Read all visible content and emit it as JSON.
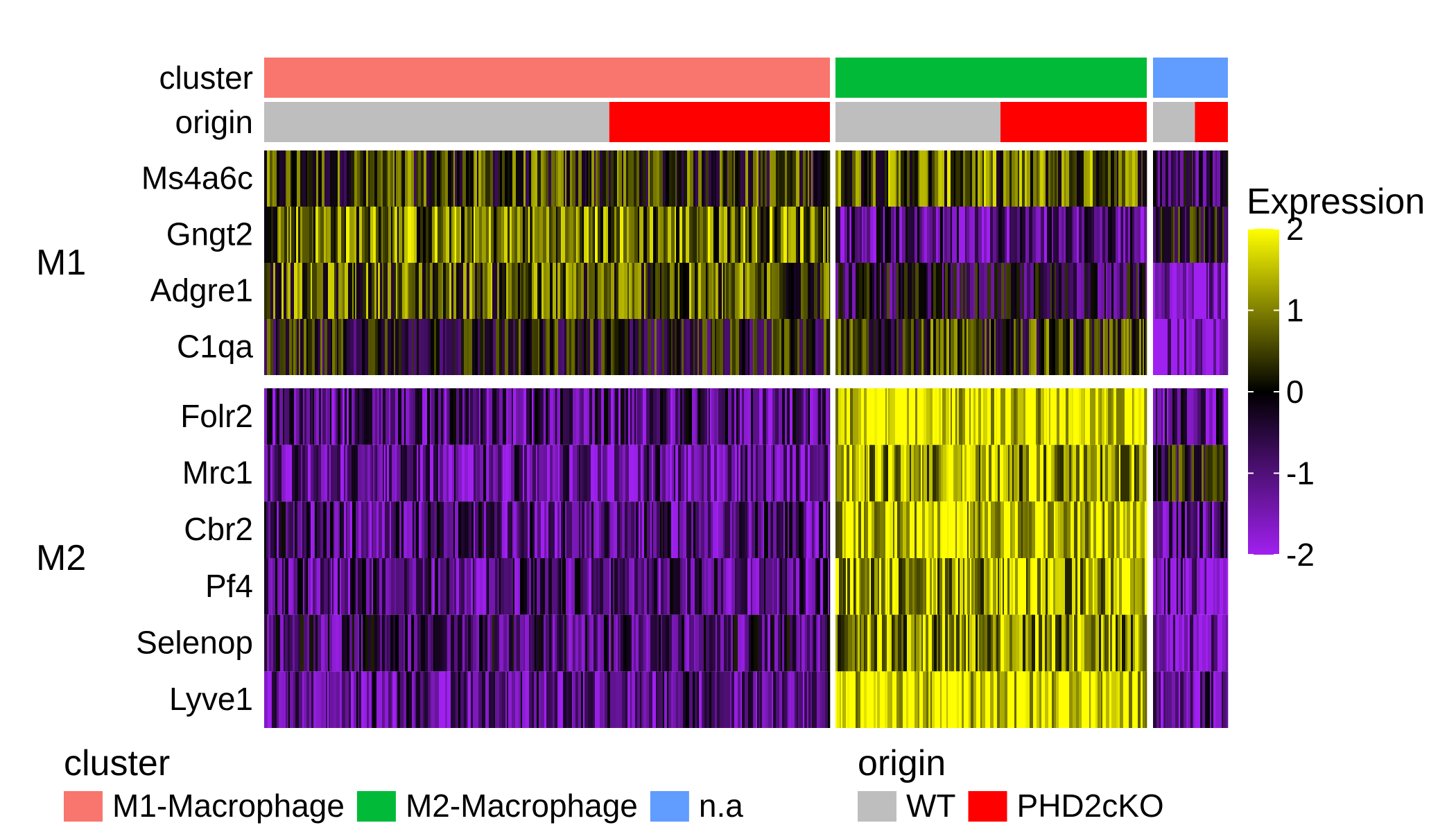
{
  "chart_data": {
    "type": "heatmap",
    "annotation_tracks": [
      "cluster",
      "origin"
    ],
    "column_groups": [
      {
        "cluster": "M1-Macrophage",
        "origin_split": {
          "WT": 0.61,
          "PHD2cKO": 0.39
        }
      },
      {
        "cluster": "M2-Macrophage",
        "origin_split": {
          "WT": 0.53,
          "PHD2cKO": 0.47
        }
      },
      {
        "cluster": "n.a",
        "origin_split": {
          "WT": 0.56,
          "PHD2cKO": 0.44
        }
      }
    ],
    "row_groups": [
      {
        "label": "M1",
        "genes": [
          "Ms4a6c",
          "Gngt2",
          "Adgre1",
          "C1qa"
        ]
      },
      {
        "label": "M2",
        "genes": [
          "Folr2",
          "Mrc1",
          "Cbr2",
          "Pf4",
          "Selenop",
          "Lyve1"
        ]
      }
    ],
    "approx_mean_expression": {
      "Ms4a6c": [
        0.3,
        0.7,
        -0.7
      ],
      "Gngt2": [
        0.9,
        -1.0,
        0.0
      ],
      "Adgre1": [
        0.6,
        -0.5,
        -1.8
      ],
      "C1qa": [
        -0.1,
        0.3,
        -1.8
      ],
      "Folr2": [
        -1.0,
        1.8,
        -1.0
      ],
      "Mrc1": [
        -1.2,
        1.3,
        0.0
      ],
      "Cbr2": [
        -1.0,
        1.6,
        -1.0
      ],
      "Pf4": [
        -1.0,
        1.3,
        -1.3
      ],
      "Selenop": [
        -0.8,
        1.2,
        -1.6
      ],
      "Lyve1": [
        -1.1,
        1.8,
        -1.1
      ]
    },
    "colorbar": {
      "title": "Expression",
      "ticks": [
        "2",
        "1",
        "0",
        "-1",
        "-2"
      ],
      "range": [
        -2,
        2
      ],
      "colors": [
        "#a020f0",
        "#000000",
        "#ffff00"
      ]
    },
    "legend": {
      "cluster": {
        "title": "cluster",
        "items": [
          {
            "label": "M1-Macrophage",
            "color": "#f8766d"
          },
          {
            "label": "M2-Macrophage",
            "color": "#00ba38"
          },
          {
            "label": "n.a",
            "color": "#619cff"
          }
        ]
      },
      "origin": {
        "title": "origin",
        "items": [
          {
            "label": "WT",
            "color": "#bebebe"
          },
          {
            "label": "PHD2cKO",
            "color": "#ff0000"
          }
        ]
      }
    }
  }
}
